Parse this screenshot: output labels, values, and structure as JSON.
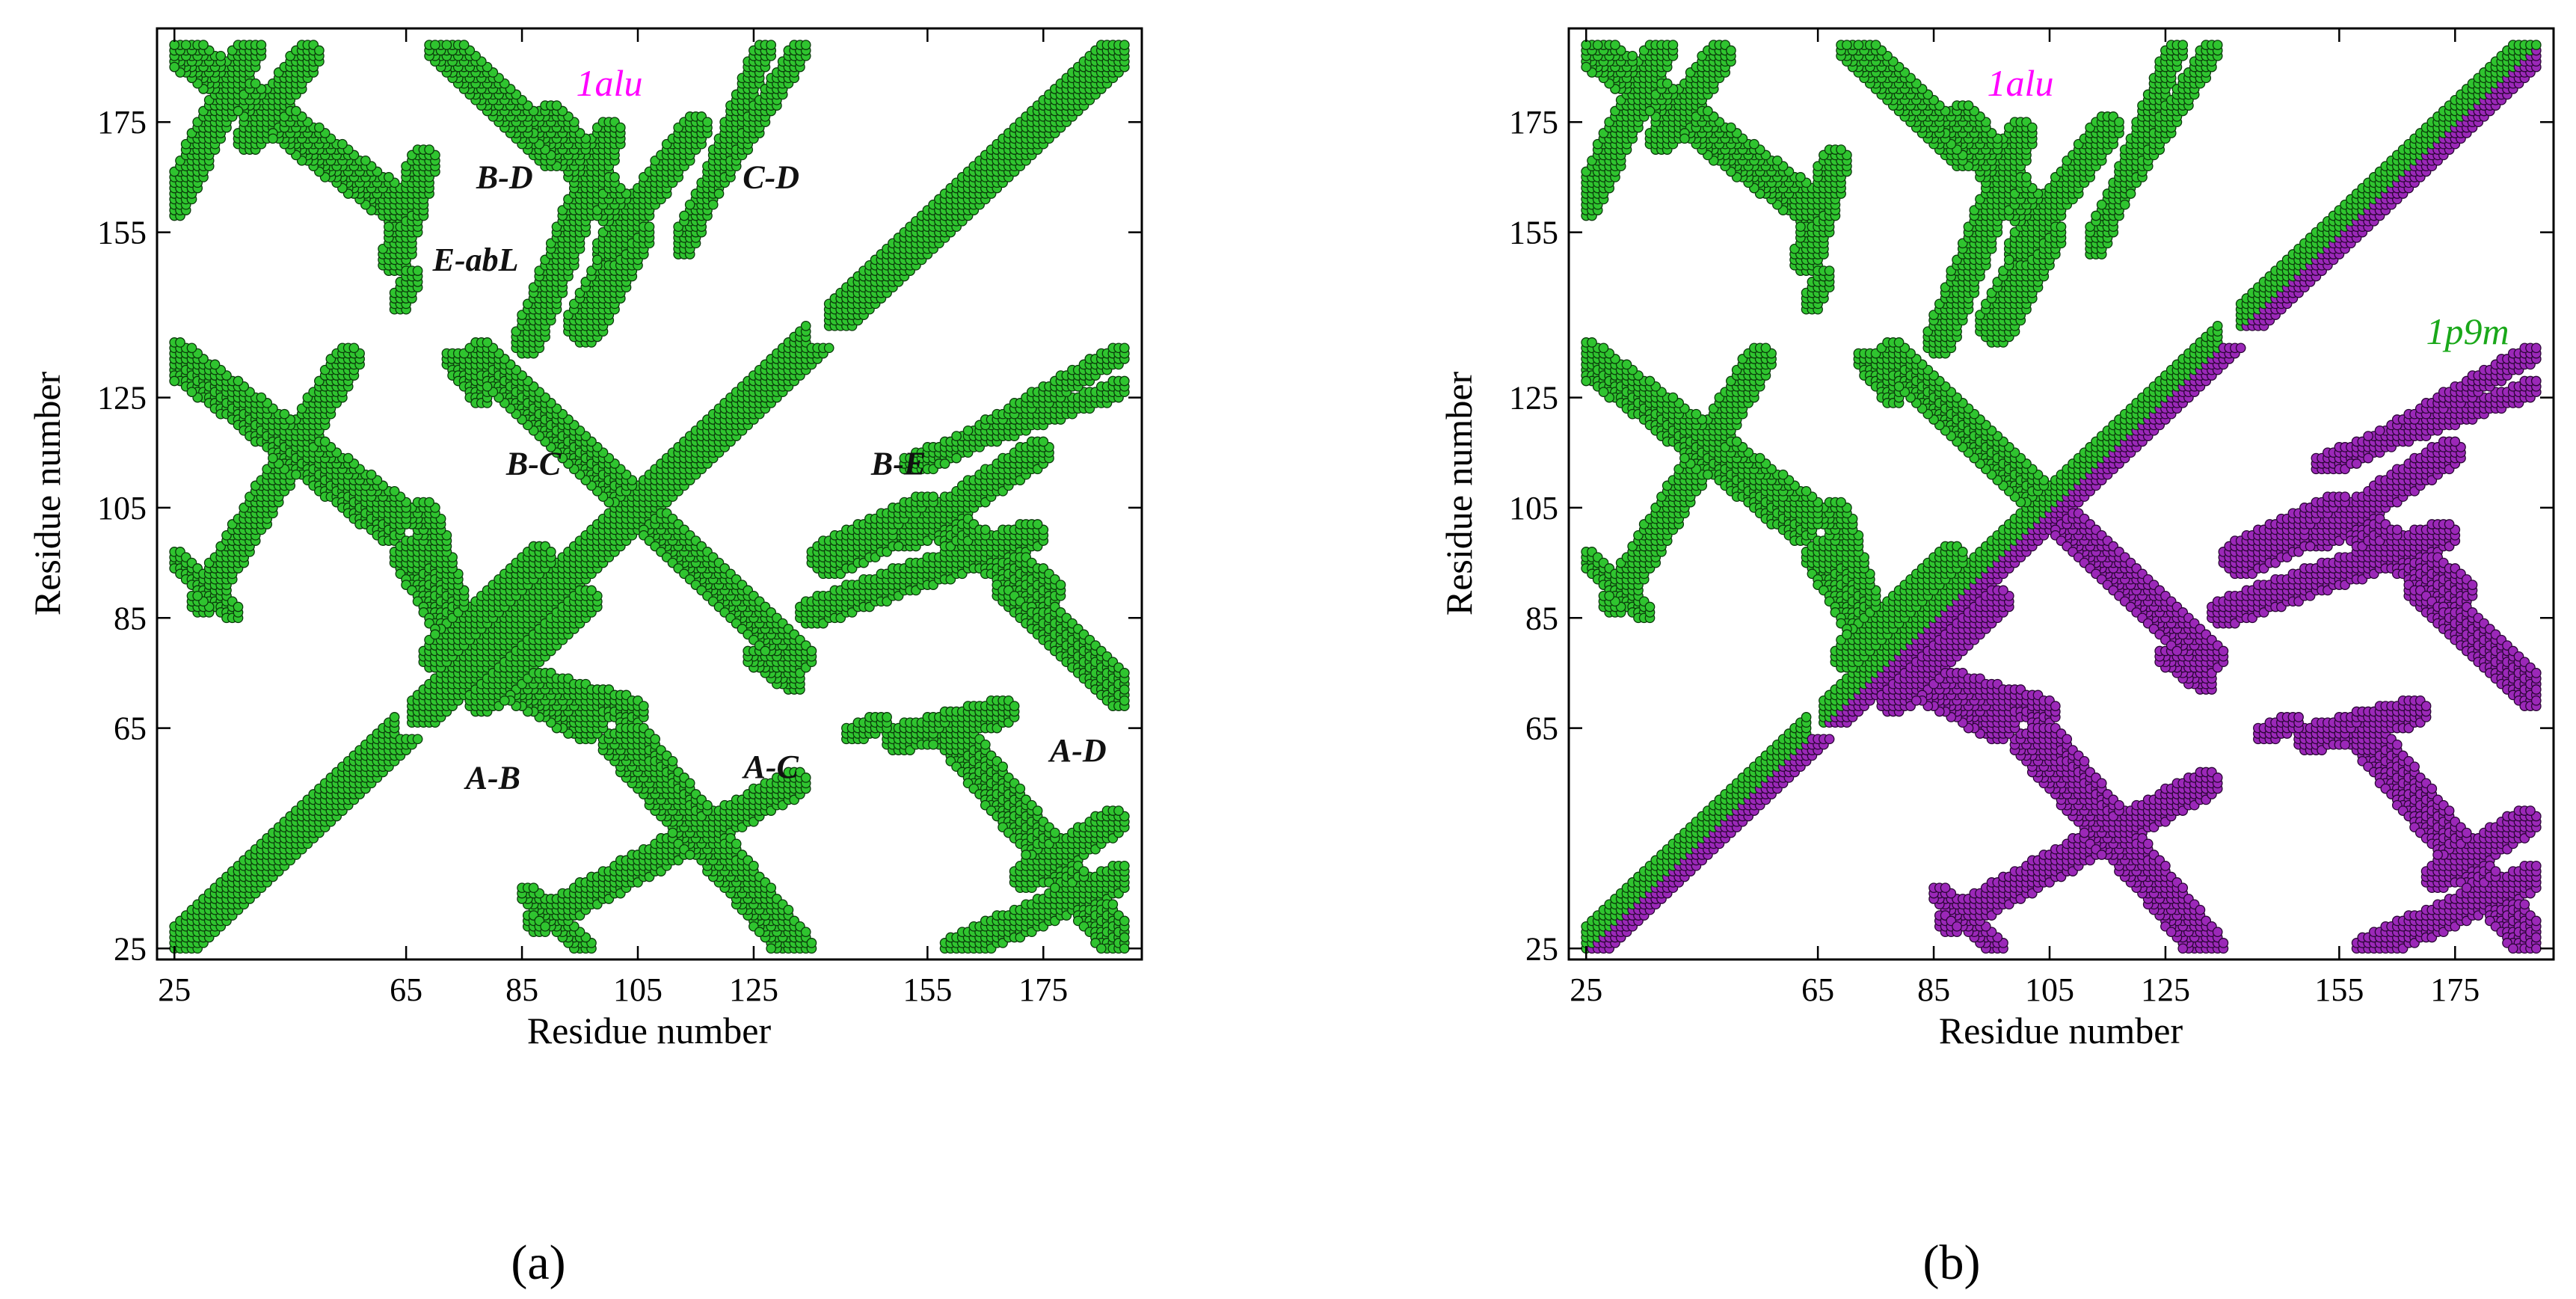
{
  "chart_data": [
    {
      "type": "scatter",
      "panel_label": "(a)",
      "xlabel": "Residue number",
      "ylabel": "Residue number",
      "xlim": [
        22,
        192
      ],
      "ylim": [
        23,
        192
      ],
      "xticks": [
        25,
        65,
        85,
        105,
        125,
        155,
        175
      ],
      "yticks": [
        25,
        65,
        85,
        105,
        125,
        155,
        175
      ],
      "structure_label": "1alu",
      "colors": {
        "upper": "#2fc42f",
        "lower": "#2fc42f",
        "outline": "#0a3a0a",
        "label": "#ff00ff"
      },
      "region_labels": [
        {
          "text": "B-D",
          "x": 82,
          "y": 163
        },
        {
          "text": "C-D",
          "x": 128,
          "y": 163
        },
        {
          "text": "E-abL",
          "x": 77,
          "y": 148
        },
        {
          "text": "B-C",
          "x": 87,
          "y": 111
        },
        {
          "text": "B-E",
          "x": 150,
          "y": 111
        },
        {
          "text": "A-B",
          "x": 80,
          "y": 54
        },
        {
          "text": "A-C",
          "x": 128,
          "y": 56
        },
        {
          "text": "A-D",
          "x": 181,
          "y": 59
        }
      ],
      "segments": [
        {
          "range": [
            25,
            63
          ]
        },
        {
          "range": [
            66,
            134
          ]
        },
        {
          "range": [
            138,
            189
          ]
        }
      ],
      "contact_bands": [
        {
          "a": [
            25,
            38
          ],
          "b": [
            160,
            189
          ],
          "w": 2,
          "lower": false,
          "label": "A-D"
        },
        {
          "a": [
            38,
            48
          ],
          "b": [
            172,
            187
          ],
          "w": 2,
          "lower": false
        },
        {
          "a": [
            86,
            100
          ],
          "b": [
            135,
            173
          ],
          "w": 2,
          "lower": false,
          "label": "B-D"
        },
        {
          "a": [
            100,
            115
          ],
          "b": [
            152,
            174
          ],
          "w": 2,
          "lower": false
        },
        {
          "a": [
            113,
            127
          ],
          "b": [
            152,
            189
          ],
          "w": 1,
          "lower": false
        },
        {
          "a": [
            70,
            88
          ],
          "b": [
            78,
            96
          ],
          "w": 2,
          "lower": false
        },
        {
          "a": [
            73,
            78
          ],
          "b": [
            132,
            125
          ],
          "w": 1,
          "lower": false
        },
        {
          "a": [
            25,
            35
          ],
          "b": [
            96,
            86
          ],
          "w": 1,
          "lower": false
        },
        {
          "a": [
            25,
            62
          ],
          "b": [
            132,
            101
          ],
          "w": 2,
          "lower": false
        },
        {
          "a": [
            66,
            80
          ],
          "b": [
            96,
            72
          ],
          "w": 3,
          "lower": false
        },
        {
          "a": [
            78,
            104
          ],
          "b": [
            132,
            106
          ],
          "w": 2,
          "lower": false,
          "label": "B-C"
        },
        {
          "a": [
            104,
            132
          ],
          "b": [
            106,
            78
          ],
          "w": 3,
          "lower": false
        },
        {
          "a": [
            84,
            104
          ],
          "b": [
            74,
            68
          ],
          "w": 2,
          "lower": false,
          "label": "A-B"
        },
        {
          "a": [
            88,
            132
          ],
          "b": [
            30,
            55
          ],
          "w": 2,
          "lower": false
        },
        {
          "a": [
            104,
            132
          ],
          "b": [
            63,
            25
          ],
          "w": 3,
          "lower": false,
          "label": "A-C"
        },
        {
          "a": [
            138,
            155
          ],
          "b": [
            96,
            104
          ],
          "w": 3,
          "lower": false,
          "label": "B-E"
        },
        {
          "a": [
            155,
            175
          ],
          "b": [
            104,
            90
          ],
          "w": 3,
          "lower": false
        },
        {
          "a": [
            170,
            188
          ],
          "b": [
            90,
            72
          ],
          "w": 3,
          "lower": false
        },
        {
          "a": [
            160,
            189
          ],
          "b": [
            63,
            25
          ],
          "w": 3,
          "lower": false
        },
        {
          "a": [
            150,
            168
          ],
          "b": [
            63,
            68
          ],
          "w": 2,
          "lower": false
        },
        {
          "a": [
            155,
            188
          ],
          "b": [
            113,
            133
          ],
          "w": 1,
          "lower": false
        },
        {
          "a": [
            142,
            147
          ],
          "b": [
            64,
            66
          ],
          "w": 1,
          "lower": false
        }
      ]
    },
    {
      "type": "scatter",
      "panel_label": "(b)",
      "xlabel": "Residue number",
      "ylabel": "Residue number",
      "xlim": [
        22,
        192
      ],
      "ylim": [
        23,
        192
      ],
      "xticks": [
        25,
        65,
        85,
        105,
        125,
        155,
        175
      ],
      "yticks": [
        25,
        65,
        85,
        105,
        125,
        155,
        175
      ],
      "structure_labels": [
        {
          "text": "1alu",
          "color": "#ff00ff"
        },
        {
          "text": "1p9m",
          "color": "#1aa81a"
        }
      ],
      "colors": {
        "upper": "#2fc42f",
        "lower": "#9b28b8",
        "outline": "#0a3a0a",
        "outline_lower": "#2a0535"
      },
      "note": "upper triangle: 1alu contacts (green); lower triangle: 1p9m contacts (purple)"
    }
  ],
  "figure": {
    "panel_a_label": "(a)",
    "panel_b_label": "(b)"
  }
}
